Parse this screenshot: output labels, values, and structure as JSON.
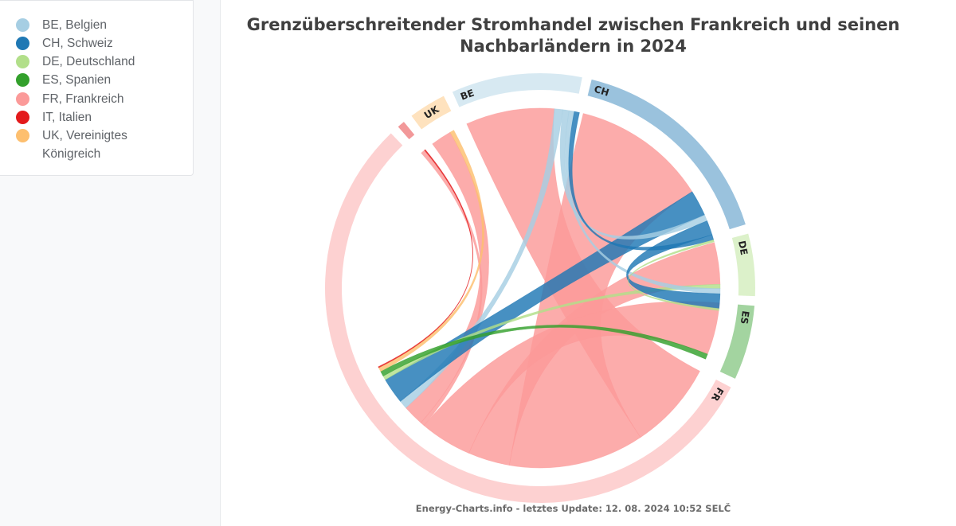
{
  "legend": [
    {
      "label": "BE, Belgien",
      "color": "#a6cee3"
    },
    {
      "label": "CH, Schweiz",
      "color": "#1f78b4"
    },
    {
      "label": "DE, Deutschland",
      "color": "#b2df8a"
    },
    {
      "label": "ES, Spanien",
      "color": "#33a02c"
    },
    {
      "label": "FR, Frankreich",
      "color": "#fb9a99"
    },
    {
      "label": "IT, Italien",
      "color": "#e31a1c"
    },
    {
      "label": "UK, Vereinigtes Königreich",
      "color": "#fdbf6f"
    }
  ],
  "title_line1": "Grenzüberschreitender Stromhandel zwischen Frankreich und seinen",
  "title_line2": "Nachbarländern in 2024",
  "footer": "Energy-Charts.info - letztes Update: 12. 08. 2024 10:52 SELČ",
  "chart_data": {
    "type": "chord",
    "title": "Grenzüberschreitender Stromhandel zwischen Frankreich und seinen Nachbarländern in 2024",
    "groups": [
      {
        "code": "BE",
        "value": 10.5,
        "color": "#a6cee3",
        "label_color": "#222222"
      },
      {
        "code": "CH",
        "value": 17.5,
        "color": "#1f78b4",
        "label_color": "#222222"
      },
      {
        "code": "DE",
        "value": 5.0,
        "color": "#b2df8a",
        "label_color": "#222222"
      },
      {
        "code": "ES",
        "value": 6.0,
        "color": "#33a02c",
        "label_color": "#222222"
      },
      {
        "code": "FR",
        "value": 59.0,
        "color": "#fb9a99",
        "label_color": "#222222"
      },
      {
        "code": "IT",
        "value": 0.6,
        "color": "#e31a1c",
        "label_color": "#222222"
      },
      {
        "code": "UK",
        "value": 3.0,
        "color": "#fdbf6f",
        "label_color": "#222222"
      }
    ],
    "flows": [
      {
        "source": "FR",
        "target": "BE",
        "value": 8.5
      },
      {
        "source": "FR",
        "target": "CH",
        "value": 13.0
      },
      {
        "source": "FR",
        "target": "DE",
        "value": 4.0
      },
      {
        "source": "FR",
        "target": "ES",
        "value": 5.0
      },
      {
        "source": "FR",
        "target": "IT",
        "value": 0.4
      },
      {
        "source": "FR",
        "target": "UK",
        "value": 2.0
      },
      {
        "source": "BE",
        "target": "FR",
        "value": 0.8
      },
      {
        "source": "CH",
        "target": "FR",
        "value": 2.5
      },
      {
        "source": "DE",
        "target": "FR",
        "value": 0.4
      },
      {
        "source": "ES",
        "target": "FR",
        "value": 0.5
      },
      {
        "source": "UK",
        "target": "FR",
        "value": 0.4
      },
      {
        "source": "IT",
        "target": "FR",
        "value": 0.1
      },
      {
        "source": "BE",
        "target": "CH",
        "value": 0.6
      },
      {
        "source": "BE",
        "target": "DE",
        "value": 0.5
      },
      {
        "source": "CH",
        "target": "DE",
        "value": 1.4
      },
      {
        "source": "CH",
        "target": "BE",
        "value": 0.5
      },
      {
        "source": "DE",
        "target": "CH",
        "value": 0.2
      }
    ]
  }
}
